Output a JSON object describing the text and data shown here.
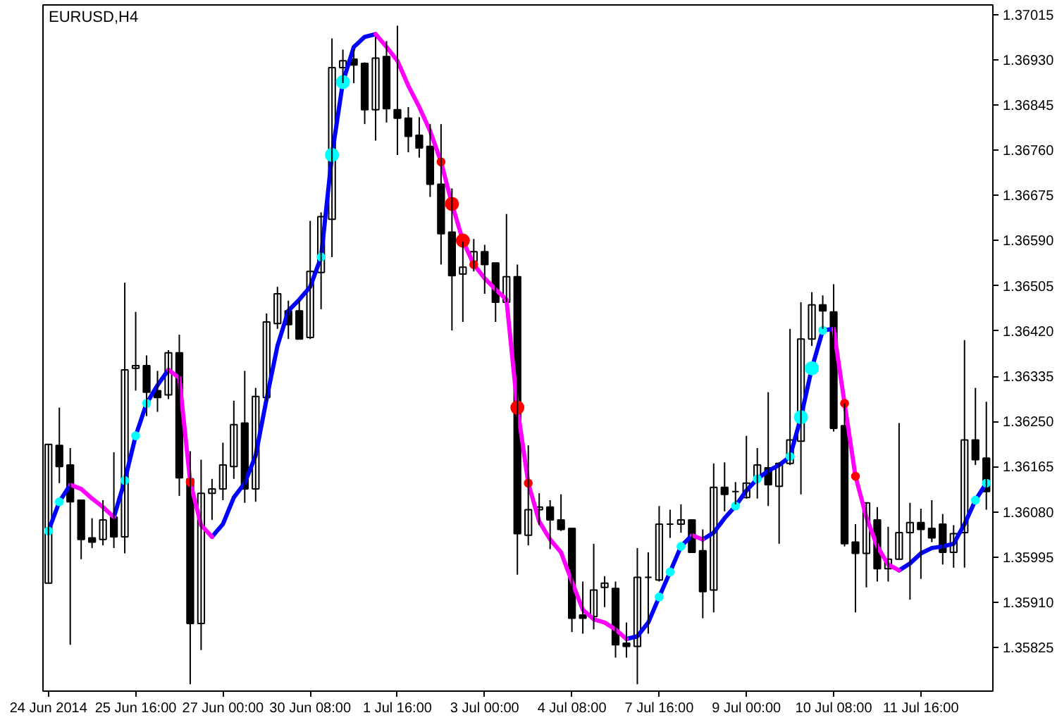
{
  "chart_data": {
    "type": "candlestick",
    "title": "EURUSD,H4",
    "categories": [
      "24 Jun 2014",
      null,
      null,
      null,
      null,
      null,
      null,
      null,
      "25 Jun 16:00",
      null,
      null,
      null,
      null,
      null,
      null,
      null,
      "27 Jun 00:00",
      null,
      null,
      null,
      null,
      null,
      null,
      null,
      "30 Jun 08:00",
      null,
      null,
      null,
      null,
      null,
      null,
      null,
      "1 Jul 16:00",
      null,
      null,
      null,
      null,
      null,
      null,
      null,
      "3 Jul 00:00",
      null,
      null,
      null,
      null,
      null,
      null,
      null,
      "4 Jul 08:00",
      null,
      null,
      null,
      null,
      null,
      null,
      null,
      "7 Jul 16:00",
      null,
      null,
      null,
      null,
      null,
      null,
      null,
      "9 Jul 00:00",
      null,
      null,
      null,
      null,
      null,
      null,
      null,
      "10 Jul 08:00",
      null,
      null,
      null,
      null,
      null,
      null,
      null,
      "11 Jul 16:00",
      null,
      null,
      null,
      null,
      null,
      null
    ],
    "ohlc": [
      [
        1.35946,
        1.36207,
        1.35946,
        1.36207
      ],
      [
        1.36205,
        1.36276,
        1.36134,
        1.36165
      ],
      [
        1.36168,
        1.362,
        1.3583,
        1.36099
      ],
      [
        1.36102,
        1.36102,
        1.35991,
        1.36028
      ],
      [
        1.36031,
        1.36068,
        1.36012,
        1.36023
      ],
      [
        1.36028,
        1.36102,
        1.36017,
        1.36065
      ],
      [
        1.3607,
        1.36192,
        1.36012,
        1.36033
      ],
      [
        1.36033,
        1.36511,
        1.36002,
        1.36347
      ],
      [
        1.3635,
        1.36456,
        1.36308,
        1.36355
      ],
      [
        1.36355,
        1.36374,
        1.3626,
        1.36305
      ],
      [
        1.36308,
        1.36345,
        1.36268,
        1.36295
      ],
      [
        1.363,
        1.36384,
        1.36292,
        1.36379
      ],
      [
        1.36379,
        1.36413,
        1.3611,
        1.36144
      ],
      [
        1.36142,
        1.36194,
        1.35756,
        1.3587
      ],
      [
        1.3587,
        1.36178,
        1.3582,
        1.36115
      ],
      [
        1.36115,
        1.36142,
        1.36065,
        1.36123
      ],
      [
        1.36123,
        1.3621,
        1.36102,
        1.36168
      ],
      [
        1.36165,
        1.36289,
        1.36142,
        1.36244
      ],
      [
        1.36247,
        1.36345,
        1.36097,
        1.36123
      ],
      [
        1.36123,
        1.36313,
        1.36099,
        1.36297
      ],
      [
        1.36295,
        1.36453,
        1.36289,
        1.36437
      ],
      [
        1.36434,
        1.36503,
        1.36424,
        1.3649
      ],
      [
        1.36458,
        1.36477,
        1.36405,
        1.36432
      ],
      [
        1.36458,
        1.36477,
        1.36405,
        1.36405
      ],
      [
        1.36408,
        1.36627,
        1.36405,
        1.36532
      ],
      [
        1.3653,
        1.36643,
        1.36461,
        1.36635
      ],
      [
        1.3663,
        1.3697,
        1.36559,
        1.36915
      ],
      [
        1.36915,
        1.36949,
        1.36886,
        1.36928
      ],
      [
        1.36931,
        1.36949,
        1.36886,
        1.3692
      ],
      [
        1.36923,
        1.36925,
        1.36809,
        1.36836
      ],
      [
        1.36836,
        1.36973,
        1.36778,
        1.36933
      ],
      [
        1.36936,
        1.36965,
        1.36812,
        1.36838
      ],
      [
        1.36836,
        1.36994,
        1.36751,
        1.3682
      ],
      [
        1.3682,
        1.36841,
        1.36756,
        1.36786
      ],
      [
        1.36788,
        1.36822,
        1.36746,
        1.36764
      ],
      [
        1.36767,
        1.36809,
        1.36672,
        1.36696
      ],
      [
        1.36696,
        1.36809,
        1.36545,
        1.36603
      ],
      [
        1.36606,
        1.36688,
        1.36421,
        1.36524
      ],
      [
        1.36527,
        1.36588,
        1.36437,
        1.3654
      ],
      [
        1.36551,
        1.36593,
        1.36532,
        1.36569
      ],
      [
        1.36569,
        1.36582,
        1.3649,
        1.36545
      ],
      [
        1.36548,
        1.36548,
        1.36437,
        1.36474
      ],
      [
        1.36474,
        1.3664,
        1.36474,
        1.36522
      ],
      [
        1.36522,
        1.36545,
        1.35962,
        1.36039
      ],
      [
        1.36036,
        1.36205,
        1.36017,
        1.36084
      ],
      [
        1.36084,
        1.36115,
        1.36055,
        1.36089
      ],
      [
        1.36089,
        1.36102,
        1.3601,
        1.36065
      ],
      [
        1.36065,
        1.36113,
        1.36044,
        1.36047
      ],
      [
        1.36049,
        1.36049,
        1.35854,
        1.3588
      ],
      [
        1.35886,
        1.35949,
        1.35851,
        1.3588
      ],
      [
        1.35883,
        1.3602,
        1.35859,
        1.35933
      ],
      [
        1.35938,
        1.35959,
        1.35901,
        1.35946
      ],
      [
        1.35936,
        1.35949,
        1.35806,
        1.3583
      ],
      [
        1.35833,
        1.35872,
        1.35806,
        1.35827
      ],
      [
        1.35827,
        1.36012,
        1.35756,
        1.35957
      ],
      [
        1.35957,
        1.36004,
        1.35851,
        1.35957
      ],
      [
        1.35952,
        1.36091,
        1.35949,
        1.36057
      ],
      [
        1.36057,
        1.36084,
        1.36031,
        1.36057
      ],
      [
        1.36057,
        1.36094,
        1.36041,
        1.36065
      ],
      [
        1.36065,
        1.36065,
        1.36004,
        1.36004
      ],
      [
        1.36007,
        1.36047,
        1.3588,
        1.3593
      ],
      [
        1.35933,
        1.36171,
        1.35891,
        1.36126
      ],
      [
        1.36126,
        1.36173,
        1.36081,
        1.36113
      ],
      [
        1.36118,
        1.36136,
        1.36094,
        1.36118
      ],
      [
        1.36107,
        1.36223,
        1.36105,
        1.36134
      ],
      [
        1.36142,
        1.362,
        1.36105,
        1.36168
      ],
      [
        1.36163,
        1.36305,
        1.36091,
        1.36131
      ],
      [
        1.36128,
        1.36173,
        1.3602,
        1.36171
      ],
      [
        1.36171,
        1.36424,
        1.36168,
        1.36215
      ],
      [
        1.36213,
        1.36474,
        1.36113,
        1.36405
      ],
      [
        1.36405,
        1.36493,
        1.36392,
        1.36469
      ],
      [
        1.36469,
        1.36487,
        1.36424,
        1.36458
      ],
      [
        1.36456,
        1.36508,
        1.36231,
        1.36237
      ],
      [
        1.36242,
        1.36284,
        1.36015,
        1.3602
      ],
      [
        1.36023,
        1.36057,
        1.35891,
        1.36002
      ],
      [
        1.36002,
        1.36097,
        1.35938,
        1.36097
      ],
      [
        1.36065,
        1.36089,
        1.35949,
        1.35973
      ],
      [
        1.35973,
        1.36052,
        1.35949,
        1.35991
      ],
      [
        1.35991,
        1.36247,
        1.35991,
        1.36041
      ],
      [
        1.36041,
        1.36097,
        1.35915,
        1.3606
      ],
      [
        1.3606,
        1.36086,
        1.35954,
        1.36047
      ],
      [
        1.36049,
        1.36102,
        1.36023,
        1.36031
      ],
      [
        1.36057,
        1.36076,
        1.35981,
        1.36004
      ],
      [
        1.36004,
        1.36055,
        1.35975,
        1.36039
      ],
      [
        1.36041,
        1.36403,
        1.35975,
        1.36215
      ],
      [
        1.36215,
        1.36313,
        1.36168,
        1.36178
      ],
      [
        1.36181,
        1.36287,
        1.36084,
        1.36118
      ]
    ],
    "ylim": [
      1.35743,
      1.37033
    ],
    "yticks": [
      1.35825,
      {
        "value": 1.3591,
        "label": "1.35910"
      },
      1.35995,
      {
        "value": 1.3608,
        "label": "1.36080"
      },
      1.36165,
      {
        "value": 1.3625,
        "label": "1.36250"
      },
      1.36335,
      {
        "value": 1.3642,
        "label": "1.36420"
      },
      1.36505,
      {
        "value": 1.3659,
        "label": "1.36590"
      },
      1.36675,
      {
        "value": 1.3676,
        "label": "1.36760"
      },
      1.36845,
      {
        "value": 1.3693,
        "label": "1.36930"
      },
      1.37015
    ],
    "series": [
      {
        "type": "line",
        "color": "#0000ff",
        "values": [
          1.36044,
          1.36099,
          1.36131,
          null,
          null,
          null,
          null,
          null,
          null,
          null,
          null,
          null,
          null,
          null,
          null,
          1.36033,
          1.36057,
          1.36107,
          1.36134,
          1.36186,
          1.36292,
          1.36392,
          1.36458,
          1.36479,
          1.36503,
          1.36559,
          1.36751,
          1.36888,
          1.36954,
          1.36973,
          1.36978,
          null,
          null,
          null,
          null,
          null,
          null,
          null,
          null,
          null,
          null,
          null,
          null,
          null,
          null,
          null,
          null,
          null,
          null,
          null,
          null,
          null,
          null,
          1.35841,
          1.35846,
          1.35872,
          1.3592,
          1.35967,
          1.36015,
          1.36036,
          null,
          null,
          null,
          null,
          null,
          null,
          null,
          null,
          null,
          null,
          null,
          null,
          null,
          null,
          null,
          null,
          null,
          null,
          1.3597,
          1.35983,
          1.36002,
          1.36012,
          1.36015,
          1.3602,
          1.36057,
          1.36102,
          1.36134
        ]
      },
      {
        "type": "line",
        "color": "#0000ff",
        "values": [
          null,
          null,
          null,
          null,
          null,
          null,
          1.3607,
          1.36139,
          1.36223,
          1.36284,
          1.36318,
          1.36347,
          null,
          null,
          null,
          null,
          null,
          null,
          null,
          null,
          null,
          null,
          null,
          null,
          null,
          null,
          null,
          null,
          null,
          null,
          null,
          null,
          null,
          null,
          null,
          null,
          null,
          null,
          null,
          null,
          null,
          null,
          null,
          null,
          null,
          null,
          null,
          null,
          null,
          null,
          null,
          null,
          null,
          null,
          null,
          null,
          null,
          null,
          null,
          null,
          1.36028,
          1.36041,
          1.36068,
          1.36091,
          1.3612,
          1.36142,
          1.36157,
          1.36168,
          1.36184,
          1.36258,
          1.3635,
          1.36421,
          1.36424,
          null,
          null,
          null,
          null,
          null,
          null,
          null,
          null,
          null,
          null,
          null,
          null,
          null,
          null
        ]
      },
      {
        "type": "line",
        "color": "#ff00ff",
        "values": [
          null,
          null,
          1.36131,
          1.36123,
          1.36105,
          1.36089,
          1.3607,
          null,
          null,
          null,
          null,
          1.36347,
          1.36332,
          1.36136,
          1.36055,
          1.36033,
          null,
          null,
          null,
          null,
          null,
          null,
          null,
          null,
          null,
          null,
          null,
          null,
          null,
          null,
          1.36978,
          1.36954,
          1.36928,
          1.36881,
          1.36841,
          1.36796,
          1.36738,
          1.36659,
          1.3659,
          1.36545,
          1.36519,
          1.36498,
          1.36479,
          1.36276,
          1.36134,
          1.36062,
          1.36028,
          1.36004,
          1.35949,
          1.35896,
          1.35878,
          1.35872,
          1.35859,
          1.35841,
          null,
          null,
          null,
          null,
          null,
          1.36036,
          1.36028,
          null,
          null,
          null,
          null,
          null,
          null,
          null,
          null,
          null,
          null,
          null,
          1.36424,
          1.36284,
          1.36147,
          1.3607,
          1.36015,
          1.35981,
          1.3597,
          null,
          null,
          null,
          null,
          null,
          null,
          null,
          null
        ]
      },
      {
        "type": "bubble",
        "color": "#00ffff",
        "values": [
          1.36044,
          1.36099,
          null,
          null,
          null,
          null,
          null,
          1.36139,
          1.36223,
          1.36284,
          null,
          null,
          null,
          null,
          null,
          null,
          null,
          null,
          null,
          null,
          null,
          null,
          null,
          null,
          null,
          1.36559,
          1.36751,
          1.36888,
          null,
          null,
          null,
          null,
          null,
          null,
          null,
          null,
          null,
          null,
          null,
          null,
          null,
          null,
          null,
          null,
          null,
          null,
          null,
          null,
          null,
          null,
          null,
          null,
          null,
          null,
          null,
          null,
          1.3592,
          1.35967,
          1.36015,
          null,
          null,
          null,
          null,
          1.36091,
          null,
          1.36142,
          null,
          null,
          1.36184,
          1.36258,
          1.3635,
          1.36421,
          null,
          null,
          null,
          null,
          null,
          null,
          null,
          null,
          null,
          null,
          null,
          null,
          null,
          1.36102,
          1.36134
        ],
        "sizes": [
          0.35,
          0.35,
          null,
          null,
          null,
          null,
          null,
          0.35,
          0.35,
          0.35,
          null,
          null,
          null,
          null,
          null,
          null,
          null,
          null,
          null,
          null,
          null,
          null,
          null,
          null,
          null,
          0.35,
          1,
          1,
          null,
          null,
          null,
          null,
          null,
          null,
          null,
          null,
          null,
          null,
          null,
          null,
          null,
          null,
          null,
          null,
          null,
          null,
          null,
          null,
          null,
          null,
          null,
          null,
          null,
          null,
          null,
          null,
          0.35,
          0.35,
          0.35,
          null,
          null,
          null,
          null,
          0.35,
          null,
          0.35,
          null,
          null,
          0.35,
          1,
          1,
          0.35,
          null,
          null,
          null,
          null,
          null,
          null,
          null,
          null,
          null,
          null,
          null,
          null,
          null,
          0.35,
          0.35
        ]
      },
      {
        "type": "bubble",
        "color": "#ff0000",
        "values": [
          null,
          null,
          null,
          null,
          null,
          null,
          null,
          null,
          null,
          null,
          null,
          null,
          null,
          1.36136,
          null,
          null,
          null,
          null,
          null,
          null,
          null,
          null,
          null,
          null,
          null,
          null,
          null,
          null,
          null,
          null,
          null,
          null,
          null,
          null,
          null,
          null,
          1.36738,
          1.36659,
          1.3659,
          1.36545,
          null,
          null,
          null,
          1.36276,
          1.36134,
          null,
          null,
          null,
          null,
          null,
          null,
          null,
          null,
          null,
          null,
          null,
          null,
          null,
          null,
          null,
          null,
          null,
          null,
          null,
          null,
          null,
          null,
          null,
          null,
          null,
          null,
          null,
          null,
          1.36284,
          1.36147,
          null,
          null,
          null,
          null,
          null,
          null,
          null,
          null,
          null,
          null,
          null,
          null
        ],
        "sizes": [
          null,
          null,
          null,
          null,
          null,
          null,
          null,
          null,
          null,
          null,
          null,
          null,
          null,
          0.35,
          null,
          null,
          null,
          null,
          null,
          null,
          null,
          null,
          null,
          null,
          null,
          null,
          null,
          null,
          null,
          null,
          null,
          null,
          null,
          null,
          null,
          null,
          0.35,
          1,
          1,
          0.35,
          null,
          null,
          null,
          1,
          0.35,
          null,
          null,
          null,
          null,
          null,
          null,
          null,
          null,
          null,
          null,
          null,
          null,
          null,
          null,
          null,
          null,
          null,
          null,
          null,
          null,
          null,
          null,
          null,
          null,
          null,
          null,
          null,
          null,
          0.35,
          0.35,
          null,
          null,
          null,
          null,
          null,
          null,
          null,
          null,
          null,
          null,
          null,
          null
        ]
      }
    ]
  }
}
